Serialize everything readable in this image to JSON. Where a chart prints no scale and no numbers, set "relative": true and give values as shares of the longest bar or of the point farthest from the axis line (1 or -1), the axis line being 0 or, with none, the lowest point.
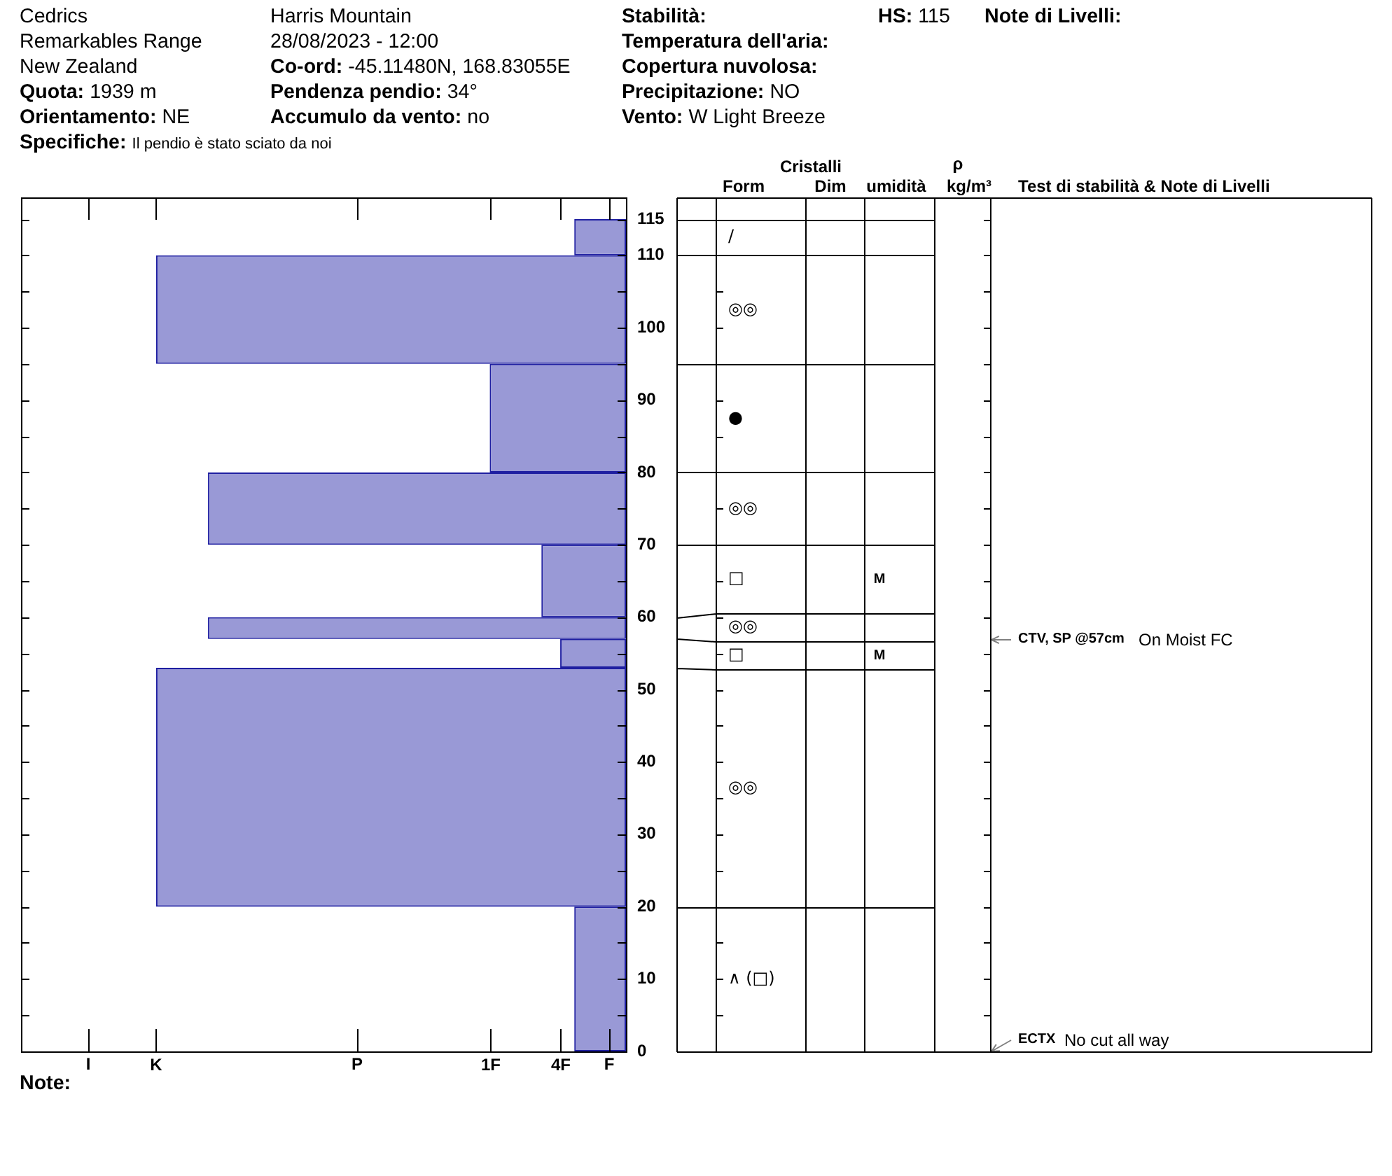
{
  "chart_data": [
    {
      "type": "bar",
      "orientation": "horizontal",
      "relative": true,
      "x": [
        10,
        36.5,
        55,
        58.5,
        65,
        75,
        87.5,
        102.5,
        112.5
      ],
      "values": [
        -0.11,
        -1,
        -0.14,
        -0.89,
        -0.18,
        -0.89,
        -0.29,
        -1,
        -0.11
      ],
      "color": "#9999d6",
      "ylim": [
        0,
        118
      ],
      "yticks": [
        0,
        {
          "value": 5,
          "label": null
        },
        10,
        {
          "value": 15,
          "label": null
        },
        20,
        {
          "value": 25,
          "label": null
        },
        30,
        {
          "value": 35,
          "label": null
        },
        40,
        {
          "value": 45,
          "label": null
        },
        50,
        {
          "value": 55,
          "label": null
        },
        60,
        {
          "value": 65,
          "label": null
        },
        70,
        {
          "value": 75,
          "label": null
        },
        80,
        {
          "value": 85,
          "label": null
        },
        90,
        {
          "value": 95,
          "label": null
        },
        100,
        {
          "value": 105,
          "label": null
        },
        110,
        115
      ],
      "annotations": [
        "Cedrics",
        "Remarkables Range",
        "New Zealand",
        "Quota: 1939 m",
        "Orientamento: NE",
        "Specifiche: Il pendio è stato sciato da noi",
        "Harris Mountain",
        "28/08/2023 - 12:00",
        "Co-ord: -45.11480N, 168.83055E",
        "Pendenza pendio: 34°",
        "Accumulo da vento: no",
        "Stabilità:",
        "Temperatura dell'aria:",
        "Copertura nuvolosa:",
        "Precipitazione: NO",
        "Vento: W Light Breeze",
        "HS:115",
        "Note di Livelli:",
        "Note:",
        "I",
        "P",
        "F",
        "CTV, SP @57cm",
        "On Moist FC",
        "ECTX",
        "No cut all way",
        {
          "text": "K",
          "x": -1
        },
        {
          "text": "1F",
          "x": -0.29
        },
        {
          "text": "4F",
          "x": -0.14
        }
      ]
    },
    {
      "type": "other",
      "annotations": [
        "Cristalli",
        "Form",
        "Dim",
        "umidità",
        "ρ",
        "kg/m³",
        "Test di stabilità & Note di Livelli",
        "/",
        "◎◎",
        "●",
        "◎◎",
        "□",
        "M",
        "◎◎",
        "□",
        "M",
        "◎◎",
        "∧ (□)"
      ]
    }
  ]
}
